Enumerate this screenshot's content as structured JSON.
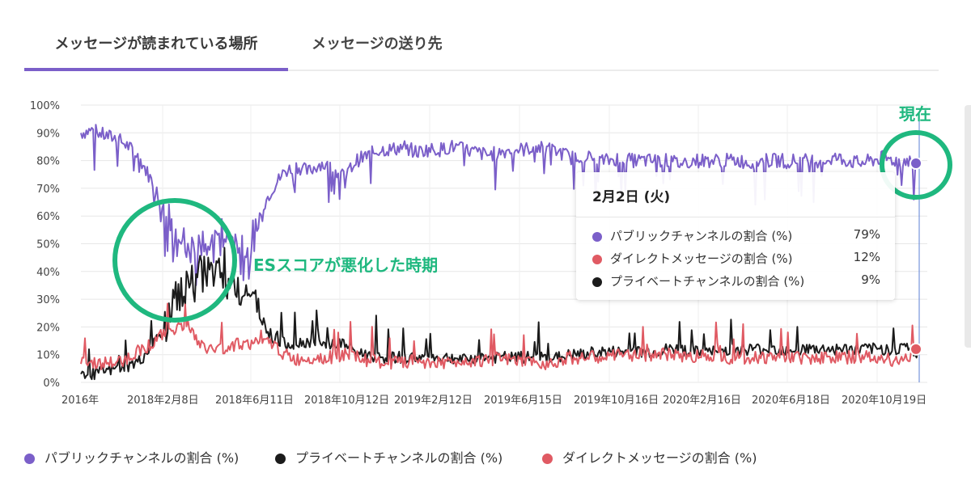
{
  "tabs": [
    {
      "label": "メッセージが読まれている場所",
      "active": true
    },
    {
      "label": "メッセージの送り先",
      "active": false
    }
  ],
  "tooltip": {
    "date": "2月2日 (火)",
    "rows": [
      {
        "label": "パブリックチャンネルの割合 (%)",
        "value": "79%",
        "color": "#7b5fc9"
      },
      {
        "label": "ダイレクトメッセージの割合 (%)",
        "value": "12%",
        "color": "#e05a63"
      },
      {
        "label": "プライベートチャンネルの割合 (%)",
        "value": "9%",
        "color": "#1b1b1b"
      }
    ]
  },
  "annotations": {
    "bad_period": "ESスコアが悪化した時期",
    "current": "現在"
  },
  "colors": {
    "public": "#7b5fc9",
    "private": "#1b1b1b",
    "dm": "#e05a63",
    "highlight": "#1fb87f",
    "tab_accent": "#7b5fc9"
  },
  "chart_data": {
    "type": "line",
    "ylim": [
      0,
      100
    ],
    "yticks": [
      "0%",
      "10%",
      "20%",
      "30%",
      "40%",
      "50%",
      "60%",
      "70%",
      "80%",
      "90%",
      "100%"
    ],
    "xticks": [
      "2016年",
      "2018年2月8日",
      "2018年6月11日",
      "2018年10月12日",
      "2019年2月12日",
      "2019年6月15日",
      "2019年10月16日",
      "2020年2月16日",
      "2020年6月18日",
      "2020年10月19日"
    ],
    "grid": true,
    "legend_position": "bottom",
    "series": [
      {
        "name": "パブリックチャンネルの割合 (%)",
        "color": "#7b5fc9",
        "anchors": [
          90,
          91,
          89,
          88,
          85,
          80,
          72,
          62,
          50,
          46,
          50,
          53,
          52,
          50,
          48,
          62,
          70,
          76,
          78,
          76,
          79,
          77,
          74,
          80,
          82,
          84,
          84,
          85,
          83,
          84,
          84,
          85,
          84,
          83,
          82,
          83,
          84,
          84,
          85,
          84,
          83,
          81,
          82,
          80,
          80,
          81,
          80,
          80,
          80,
          80,
          79,
          80,
          80,
          80,
          80,
          80,
          79,
          80,
          80,
          80,
          80,
          80,
          80,
          81,
          80,
          79,
          80,
          81,
          80,
          80,
          79
        ]
      },
      {
        "name": "プライベートチャンネルの割合 (%)",
        "color": "#1b1b1b",
        "anchors": [
          4,
          3,
          4,
          5,
          6,
          8,
          14,
          20,
          30,
          34,
          38,
          40,
          36,
          35,
          33,
          24,
          16,
          14,
          14,
          15,
          13,
          14,
          14,
          11,
          10,
          9,
          9,
          9,
          9,
          9,
          9,
          9,
          8,
          9,
          9,
          9,
          9,
          9,
          9,
          9,
          9,
          10,
          10,
          11,
          11,
          11,
          11,
          11,
          11,
          12,
          12,
          11,
          11,
          11,
          12,
          12,
          12,
          12,
          12,
          12,
          12,
          12,
          12,
          12,
          12,
          12,
          12,
          12,
          12,
          13,
          9
        ]
      },
      {
        "name": "ダイレクトメッセージの割合 (%)",
        "color": "#e05a63",
        "anchors": [
          7,
          7,
          7,
          7,
          9,
          12,
          14,
          18,
          20,
          20,
          13,
          12,
          12,
          14,
          14,
          14,
          14,
          10,
          8,
          9,
          9,
          9,
          10,
          9,
          8,
          7,
          7,
          7,
          8,
          7,
          7,
          7,
          8,
          8,
          8,
          8,
          8,
          7,
          7,
          7,
          8,
          9,
          9,
          9,
          9,
          10,
          10,
          10,
          10,
          10,
          10,
          9,
          10,
          10,
          9,
          9,
          9,
          9,
          9,
          9,
          9,
          9,
          9,
          9,
          9,
          9,
          9,
          9,
          8,
          8,
          12
        ]
      }
    ]
  }
}
